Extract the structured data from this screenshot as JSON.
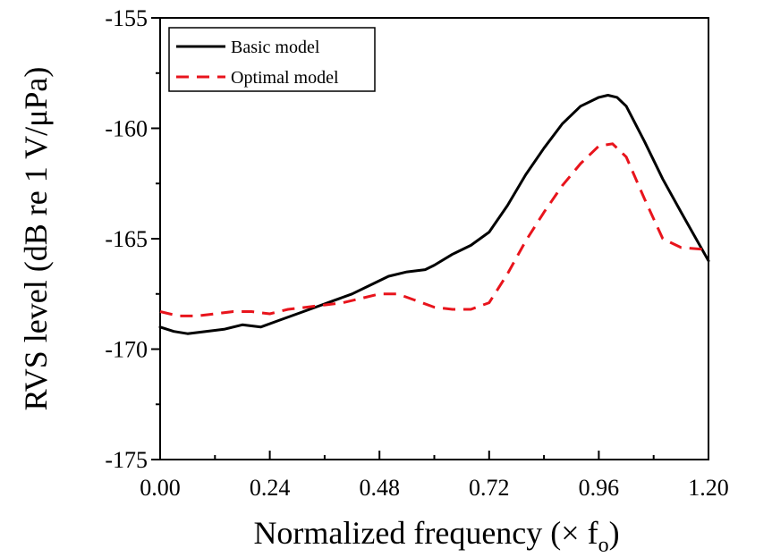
{
  "chart_data": {
    "type": "line",
    "xlabel": "Normalized frequency (× f",
    "xlabel_sub": "o",
    "xlabel_close": ")",
    "ylabel": "RVS level (dB re 1 V/μPa)",
    "xlim": [
      0.0,
      1.2
    ],
    "ylim": [
      -175,
      -155
    ],
    "xticks": [
      0.0,
      0.24,
      0.48,
      0.72,
      0.96,
      1.2
    ],
    "xtick_labels": [
      "0.00",
      "0.24",
      "0.48",
      "0.72",
      "0.96",
      "1.20"
    ],
    "yticks": [
      -175,
      -170,
      -165,
      -160,
      -155
    ],
    "ytick_labels": [
      "-175",
      "-170",
      "-165",
      "-160",
      "-155"
    ],
    "grid": false,
    "legend_position": "top-left",
    "series": [
      {
        "name": "Basic model",
        "color": "#000000",
        "dash": "solid",
        "x": [
          0.0,
          0.03,
          0.06,
          0.1,
          0.14,
          0.18,
          0.22,
          0.26,
          0.3,
          0.34,
          0.38,
          0.42,
          0.46,
          0.5,
          0.54,
          0.58,
          0.6,
          0.64,
          0.68,
          0.72,
          0.76,
          0.8,
          0.84,
          0.88,
          0.92,
          0.96,
          0.98,
          1.0,
          1.02,
          1.06,
          1.1,
          1.14,
          1.2
        ],
        "y": [
          -169.0,
          -169.2,
          -169.3,
          -169.2,
          -169.1,
          -168.9,
          -169.0,
          -168.7,
          -168.4,
          -168.1,
          -167.8,
          -167.5,
          -167.1,
          -166.7,
          -166.5,
          -166.4,
          -166.2,
          -165.7,
          -165.3,
          -164.7,
          -163.5,
          -162.1,
          -160.9,
          -159.8,
          -159.0,
          -158.6,
          -158.5,
          -158.6,
          -159.0,
          -160.6,
          -162.3,
          -163.8,
          -166.0
        ]
      },
      {
        "name": "Optimal model",
        "color": "#e8141c",
        "dash": "dashed",
        "x": [
          0.0,
          0.04,
          0.08,
          0.12,
          0.16,
          0.2,
          0.24,
          0.28,
          0.32,
          0.36,
          0.4,
          0.44,
          0.48,
          0.52,
          0.56,
          0.6,
          0.64,
          0.68,
          0.72,
          0.76,
          0.8,
          0.84,
          0.88,
          0.92,
          0.96,
          0.99,
          1.02,
          1.06,
          1.1,
          1.14,
          1.2
        ],
        "y": [
          -168.3,
          -168.5,
          -168.5,
          -168.4,
          -168.3,
          -168.3,
          -168.4,
          -168.2,
          -168.1,
          -168.0,
          -167.9,
          -167.7,
          -167.5,
          -167.5,
          -167.8,
          -168.1,
          -168.2,
          -168.2,
          -167.9,
          -166.6,
          -165.1,
          -163.8,
          -162.6,
          -161.6,
          -160.8,
          -160.7,
          -161.3,
          -163.2,
          -165.0,
          -165.4,
          -165.5
        ]
      }
    ]
  }
}
